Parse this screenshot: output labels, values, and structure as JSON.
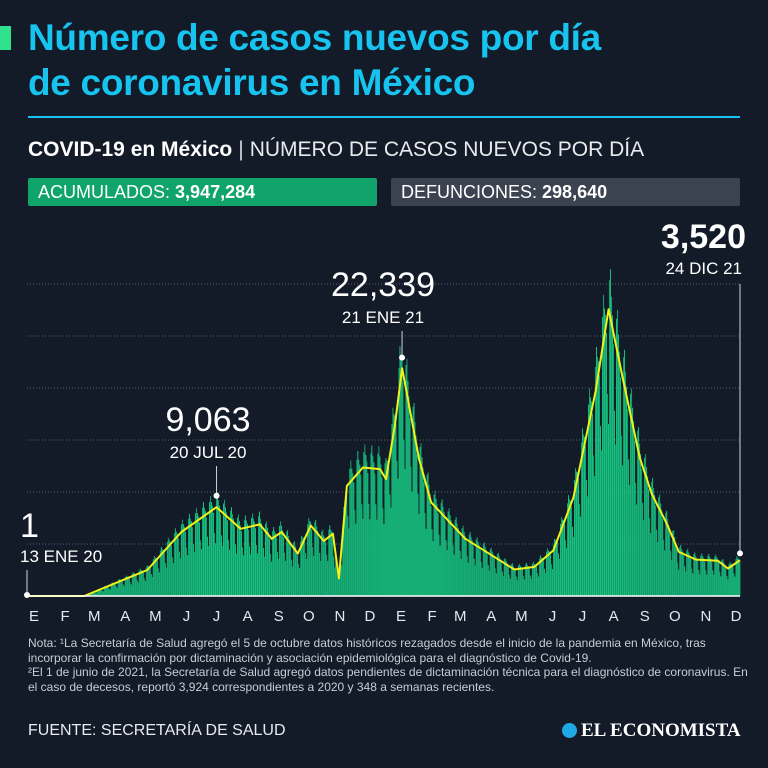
{
  "header": {
    "title_line1": "Número de casos nuevos por día",
    "title_line2": "de coronavirus en México",
    "subtitle_bold": "COVID-19 en México",
    "subtitle_sep": "|",
    "subtitle_light": "NÚMERO DE CASOS NUEVOS POR DÍA"
  },
  "stats": {
    "acumulados_label": "ACUMULADOS:",
    "acumulados_value": "3,947,284",
    "defunciones_label": "DEFUNCIONES:",
    "defunciones_value": "298,640"
  },
  "colors": {
    "background": "#131b29",
    "title": "#17c3ef",
    "bars": "#1bd98f",
    "line": "#f2f21a",
    "acumulados_box": "#10a46a",
    "defunciones_box": "#3b4350"
  },
  "chart_data": {
    "type": "bar",
    "overlay": "line (7-day average)",
    "x_type": "date",
    "xlim": [
      "2020-01-13",
      "2021-12-24"
    ],
    "ylim": [
      0,
      30000
    ],
    "gridlines": [
      5000,
      10000,
      15000,
      20000,
      25000,
      30000
    ],
    "grid": true,
    "month_ticks": [
      "E",
      "F",
      "M",
      "A",
      "M",
      "J",
      "J",
      "A",
      "S",
      "O",
      "N",
      "D",
      "E",
      "F",
      "M",
      "A",
      "M",
      "J",
      "J",
      "A",
      "S",
      "O",
      "N",
      "D"
    ],
    "line_points": [
      [
        "2020-01-13",
        0
      ],
      [
        "2020-03-10",
        0
      ],
      [
        "2020-05-12",
        2500
      ],
      [
        "2020-06-15",
        6150
      ],
      [
        "2020-07-20",
        8540
      ],
      [
        "2020-08-13",
        6460
      ],
      [
        "2020-09-01",
        6880
      ],
      [
        "2020-09-13",
        5500
      ],
      [
        "2020-09-23",
        6150
      ],
      [
        "2020-10-09",
        4080
      ],
      [
        "2020-10-22",
        6780
      ],
      [
        "2020-11-04",
        5290
      ],
      [
        "2020-11-13",
        5990
      ],
      [
        "2020-11-19",
        1690
      ],
      [
        "2020-11-27",
        10600
      ],
      [
        "2020-12-13",
        12360
      ],
      [
        "2020-12-30",
        12200
      ],
      [
        "2021-01-05",
        11240
      ],
      [
        "2021-01-14",
        16500
      ],
      [
        "2021-01-21",
        21900
      ],
      [
        "2021-02-07",
        13150
      ],
      [
        "2021-02-19",
        9010
      ],
      [
        "2021-03-25",
        5510
      ],
      [
        "2021-05-13",
        2550
      ],
      [
        "2021-06-02",
        2800
      ],
      [
        "2021-06-21",
        4400
      ],
      [
        "2021-07-11",
        9490
      ],
      [
        "2021-08-02",
        19680
      ],
      [
        "2021-08-15",
        27580
      ],
      [
        "2021-08-29",
        20960
      ],
      [
        "2021-09-15",
        13310
      ],
      [
        "2021-09-27",
        9810
      ],
      [
        "2021-10-12",
        6940
      ],
      [
        "2021-10-24",
        4240
      ],
      [
        "2021-11-10",
        3500
      ],
      [
        "2021-12-02",
        3380
      ],
      [
        "2021-12-12",
        2640
      ],
      [
        "2021-12-24",
        3440
      ]
    ],
    "annotations": [
      {
        "value": "1",
        "date_label": "13 ENE 20",
        "date": "2020-01-13",
        "y": 1
      },
      {
        "value": "9,063",
        "date_label": "20 JUL 20",
        "date": "2020-07-20",
        "y": 9063
      },
      {
        "value": "22,339",
        "date_label": "21 ENE 21",
        "date": "2021-01-21",
        "y": 22339
      },
      {
        "value": "3,520",
        "date_label": "24 DIC 21",
        "date": "2021-12-24",
        "y": 3520
      }
    ]
  },
  "notes": {
    "note1": "Nota: ¹La Secretaría de Salud agregó el 5 de octubre datos históricos rezagados desde el inicio de la pandemia en México, tras incorporar la confirmación por dictaminación y asociación epidemiológica para el diagnóstico de Covid-19.",
    "note2": "²El 1 de junio de 2021, la Secretaría de Salud agregó datos pendientes de dictaminación técnica para el diagnóstico de coronavirus. En el caso de decesos, reportó 3,924 correspondientes a 2020 y 348 a semanas recientes."
  },
  "footer": {
    "source": "FUENTE: SECRETARÍA DE SALUD",
    "logo": "EL ECONOMISTA"
  }
}
